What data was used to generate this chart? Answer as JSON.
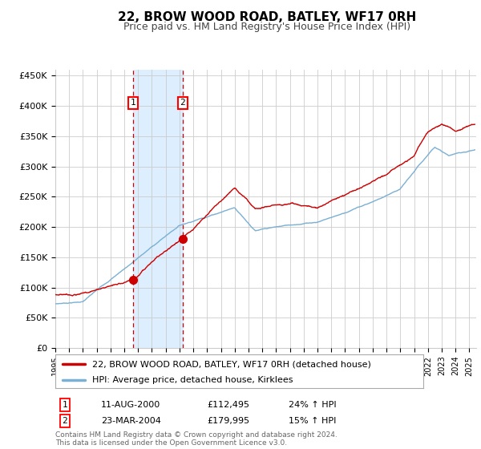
{
  "title": "22, BROW WOOD ROAD, BATLEY, WF17 0RH",
  "subtitle": "Price paid vs. HM Land Registry's House Price Index (HPI)",
  "ylim": [
    0,
    460000
  ],
  "yticks": [
    0,
    50000,
    100000,
    150000,
    200000,
    250000,
    300000,
    350000,
    400000,
    450000
  ],
  "ytick_labels": [
    "£0",
    "£50K",
    "£100K",
    "£150K",
    "£200K",
    "£250K",
    "£300K",
    "£350K",
    "£400K",
    "£450K"
  ],
  "sale1": {
    "date_num": 2000.617,
    "price": 112495,
    "label": "1",
    "date_str": "11-AUG-2000",
    "pct": "24%"
  },
  "sale2": {
    "date_num": 2004.225,
    "price": 179995,
    "label": "2",
    "date_str": "23-MAR-2004",
    "pct": "15%"
  },
  "line_color_paid": "#cc0000",
  "line_color_hpi": "#7ab0d4",
  "shade_color": "#ddeeff",
  "grid_color": "#cccccc",
  "background_color": "#ffffff",
  "legend_label_paid": "22, BROW WOOD ROAD, BATLEY, WF17 0RH (detached house)",
  "legend_label_hpi": "HPI: Average price, detached house, Kirklees",
  "footnote": "Contains HM Land Registry data © Crown copyright and database right 2024.\nThis data is licensed under the Open Government Licence v3.0.",
  "xlim_start": 1995.0,
  "xlim_end": 2025.5
}
